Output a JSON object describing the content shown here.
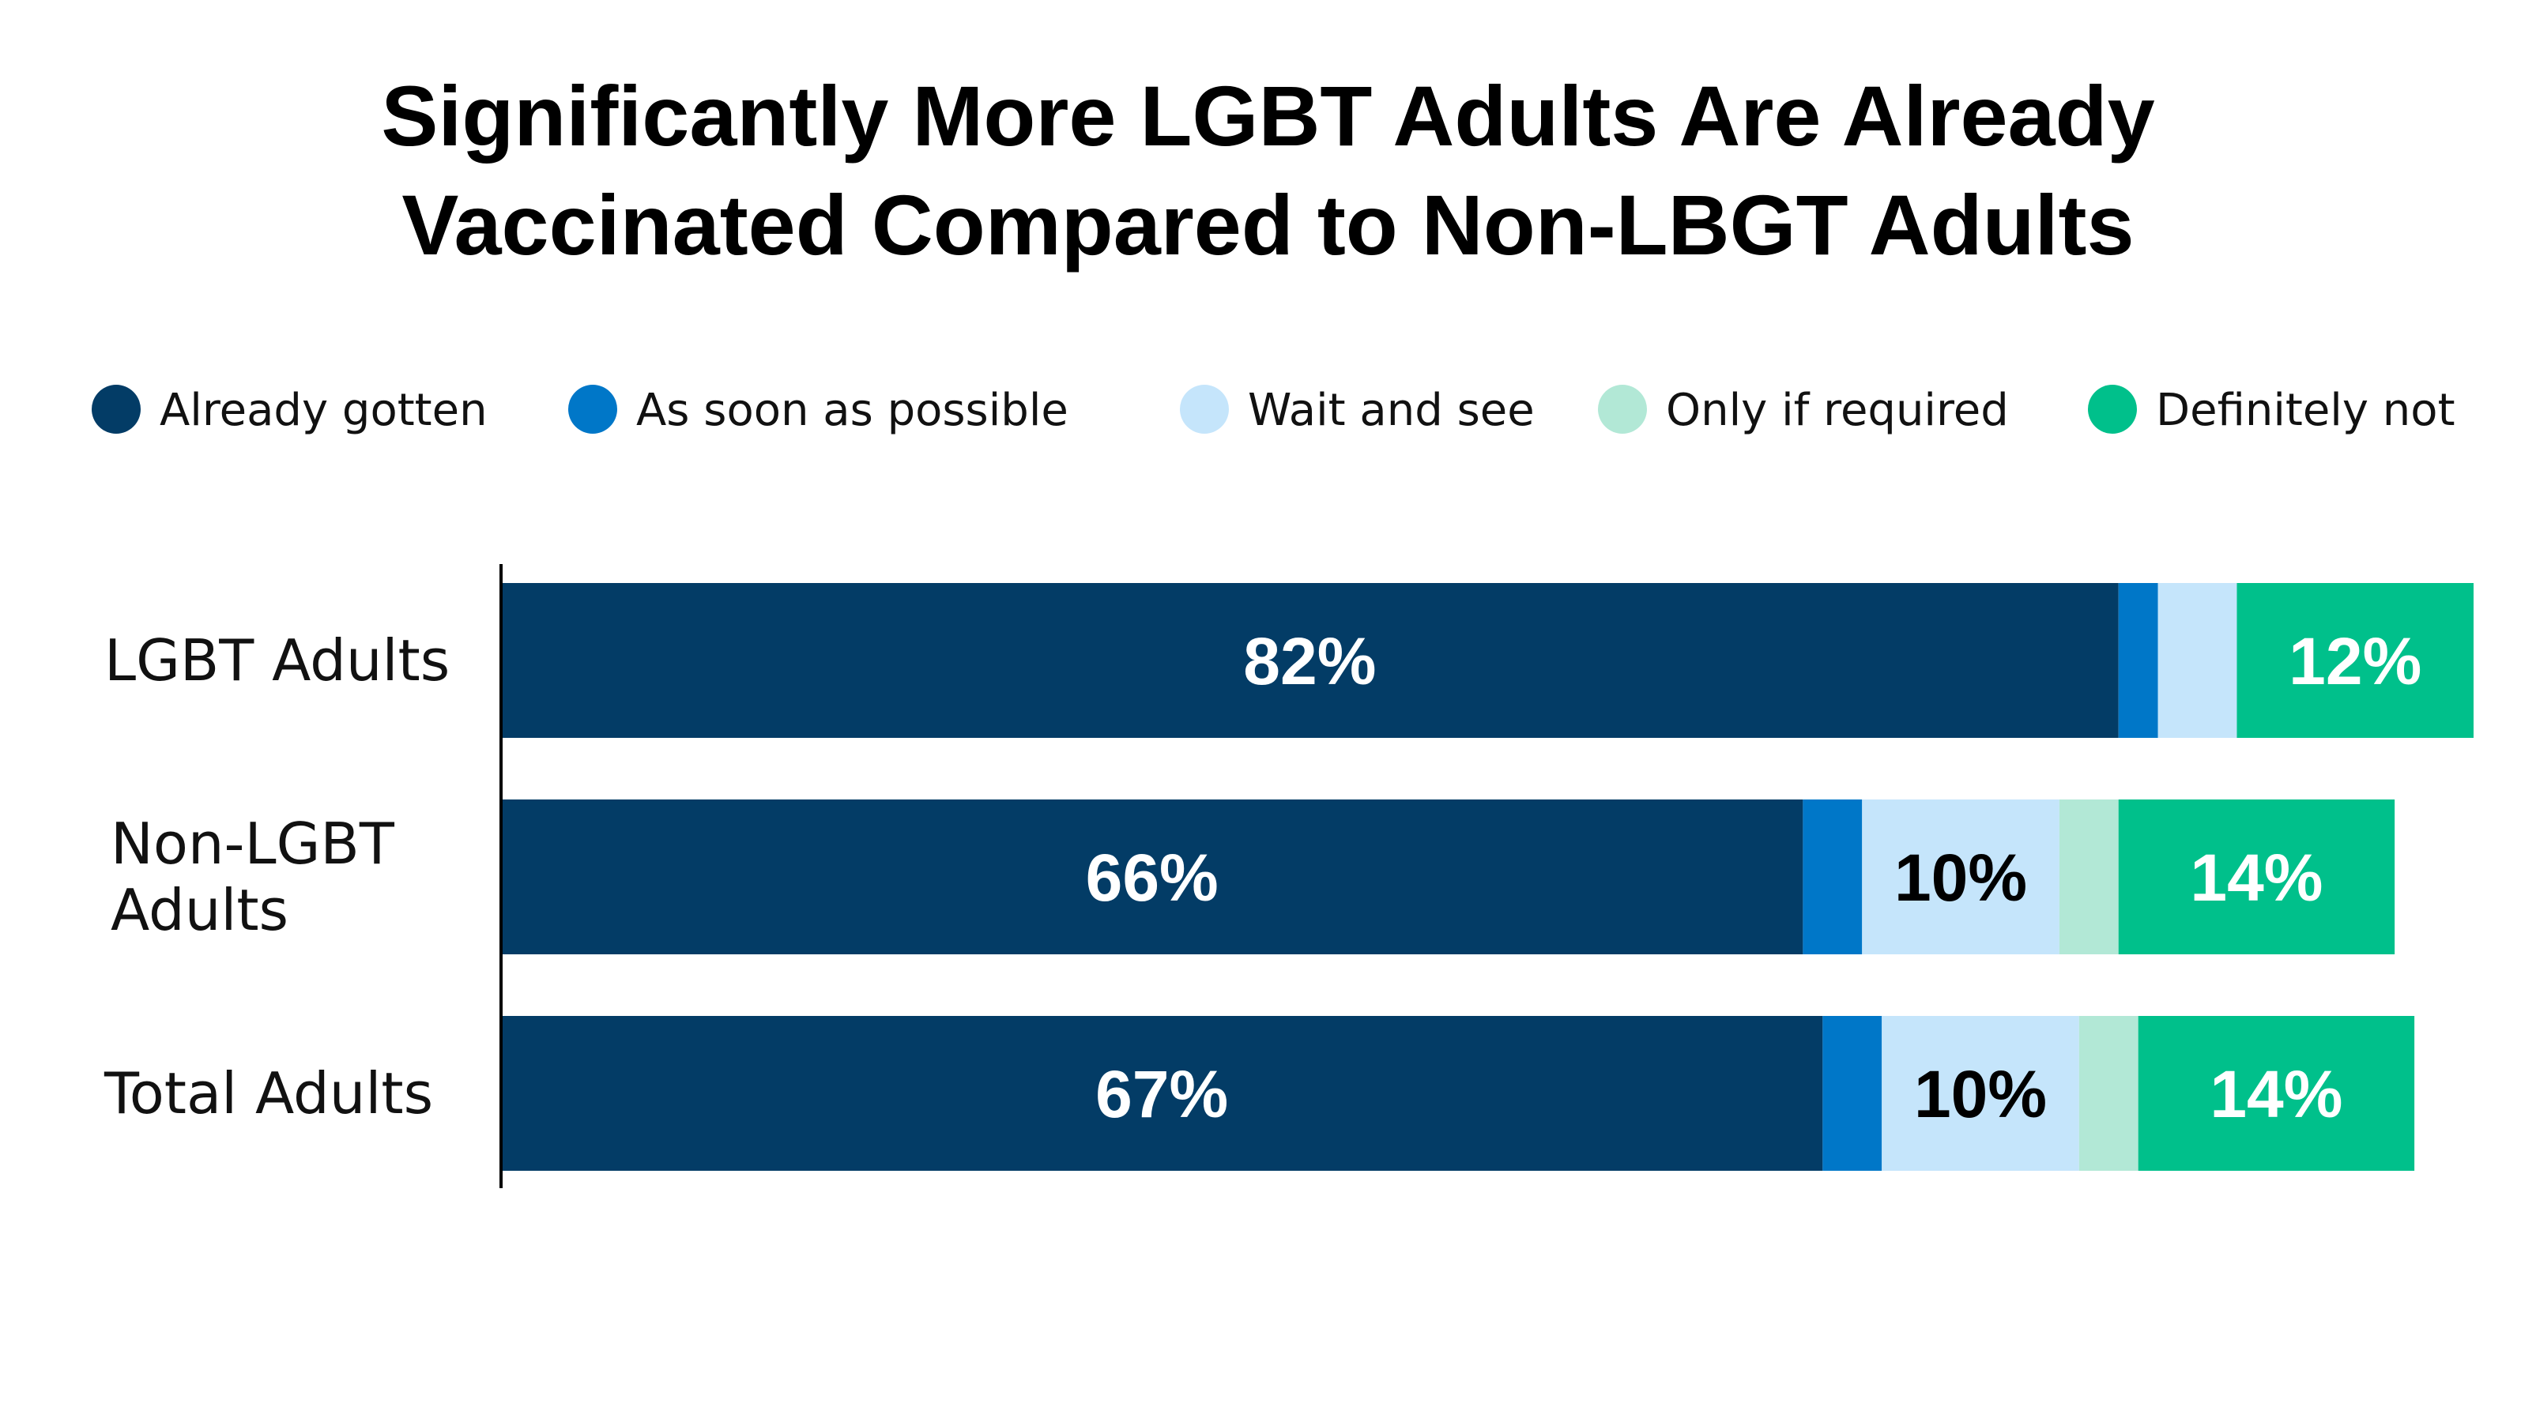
{
  "title_lines": [
    "Significantly More LGBT Adults Are Already",
    "Vaccinated Compared to Non-LBGT Adults"
  ],
  "chart_data": {
    "type": "bar",
    "orientation": "horizontal",
    "stacked": true,
    "categories": [
      "LGBT Adults",
      "Non-LGBT Adults",
      "Total Adults"
    ],
    "category_label_lines": [
      [
        "LGBT Adults"
      ],
      [
        "Non-LGBT",
        "Adults"
      ],
      [
        "Total Adults"
      ]
    ],
    "series": [
      {
        "name": "Already gotten",
        "color": "#033c66",
        "label_color": "#ffffff",
        "values": [
          82,
          66,
          67
        ],
        "labels": [
          "82%",
          "66%",
          "67%"
        ]
      },
      {
        "name": "As soon as possible",
        "color": "#0077c8",
        "label_color": "#ffffff",
        "values": [
          2,
          3,
          3
        ],
        "labels": [
          "",
          "",
          ""
        ]
      },
      {
        "name": "Wait and see",
        "color": "#c5e5fb",
        "label_color": "#000000",
        "values": [
          4,
          10,
          10
        ],
        "labels": [
          "",
          "10%",
          "10%"
        ]
      },
      {
        "name": "Only if required",
        "color": "#b2e8d6",
        "label_color": "#000000",
        "values": [
          0,
          3,
          3
        ],
        "labels": [
          "",
          "",
          ""
        ]
      },
      {
        "name": "Definitely not",
        "color": "#00c08b",
        "label_color": "#ffffff",
        "values": [
          12,
          14,
          14
        ],
        "labels": [
          "12%",
          "14%",
          "14%"
        ]
      }
    ],
    "xlim": [
      0,
      100
    ],
    "legend_position": "top",
    "grid": false
  }
}
